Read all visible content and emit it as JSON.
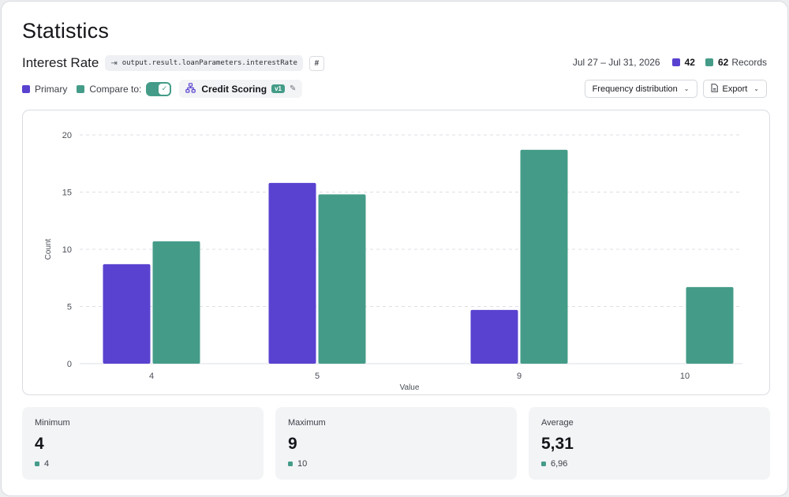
{
  "page": {
    "title": "Statistics"
  },
  "metric": {
    "name": "Interest Rate",
    "path": "output.result.loanParameters.interestRate",
    "hash_label": "#"
  },
  "meta": {
    "date_range": "Jul 27 – Jul 31, 2026",
    "primary_count": "42",
    "compare_count": "62",
    "records_label": "Records"
  },
  "legend": {
    "primary_label": "Primary",
    "compare_label": "Compare to:",
    "compare_enabled": true
  },
  "model": {
    "name": "Credit Scoring",
    "version": "v1"
  },
  "toolbar": {
    "distribution_label": "Frequency distribution",
    "export_label": "Export"
  },
  "colors": {
    "primary": "#5a42d0",
    "compare": "#449c88"
  },
  "icons": {
    "path": "arrow-in-icon",
    "hash": "hash-icon",
    "check": "check-icon",
    "model": "network-icon",
    "edit": "pencil-icon",
    "chevron": "chevron-down-icon",
    "export": "file-icon"
  },
  "chart_data": {
    "type": "bar",
    "categories": [
      "4",
      "5",
      "9",
      "10"
    ],
    "series": [
      {
        "name": "Primary",
        "values": [
          8.7,
          15.8,
          4.7,
          0
        ]
      },
      {
        "name": "Compare to",
        "values": [
          10.7,
          14.8,
          18.7,
          6.7
        ]
      }
    ],
    "xlabel": "Value",
    "ylabel": "Count",
    "yticks": [
      "0",
      "5",
      "10",
      "15",
      "20"
    ],
    "ylim": [
      0,
      20
    ],
    "grid": true
  },
  "stats": [
    {
      "label": "Minimum",
      "value": "4",
      "compare": "4"
    },
    {
      "label": "Maximum",
      "value": "9",
      "compare": "10"
    },
    {
      "label": "Average",
      "value": "5,31",
      "compare": "6,96"
    }
  ]
}
